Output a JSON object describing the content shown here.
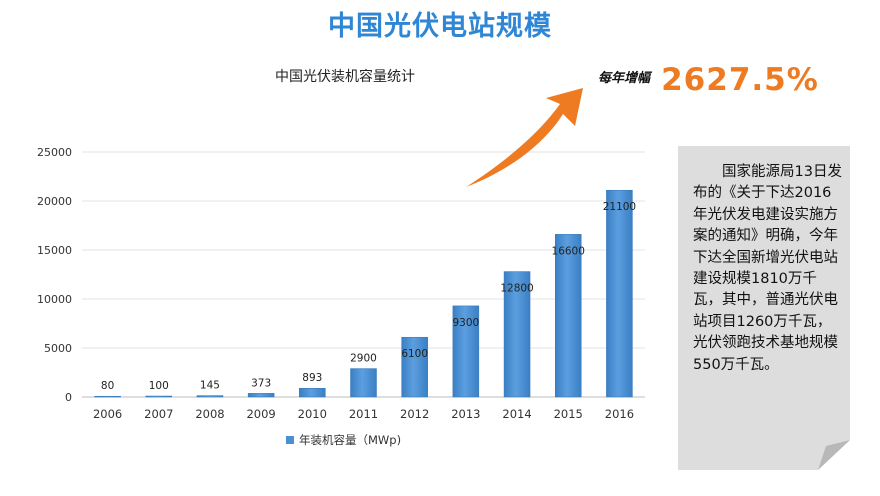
{
  "page_title": "中国光伏电站规模",
  "growth": {
    "label": "每年增幅",
    "value": "2627.5%"
  },
  "note": {
    "text": "国家能源局13日发布的《关于下达2016年光伏发电建设实施方案的通知》明确，今年下达全国新增光伏电站建设规模1810万千瓦，其中，普通光伏电站项目1260万千瓦，光伏领跑技术基地规模550万千瓦。"
  },
  "colors": {
    "title": "#2e86d4",
    "bar": "#4a8fd2",
    "arrow": "#ee7a22",
    "growth_value": "#ee7a22",
    "note_bg": "#dddddd"
  },
  "chart_data": {
    "type": "bar",
    "title": "中国光伏装机容量统计",
    "categories": [
      "2006",
      "2007",
      "2008",
      "2009",
      "2010",
      "2011",
      "2012",
      "2013",
      "2014",
      "2015",
      "2016"
    ],
    "series": [
      {
        "name": "年装机容量（MWp)",
        "values": [
          80,
          100,
          145,
          373,
          893,
          2900,
          6100,
          9300,
          12800,
          16600,
          21100
        ],
        "data_labels": [
          "80",
          "100",
          "145",
          "373",
          "893",
          "2900",
          "6100",
          "9300",
          "12800",
          "16600",
          "21100"
        ]
      }
    ],
    "ylim": [
      0,
      25000
    ],
    "yticks": [
      0,
      5000,
      10000,
      15000,
      20000,
      25000
    ],
    "grid": true,
    "legend": "bottom"
  }
}
